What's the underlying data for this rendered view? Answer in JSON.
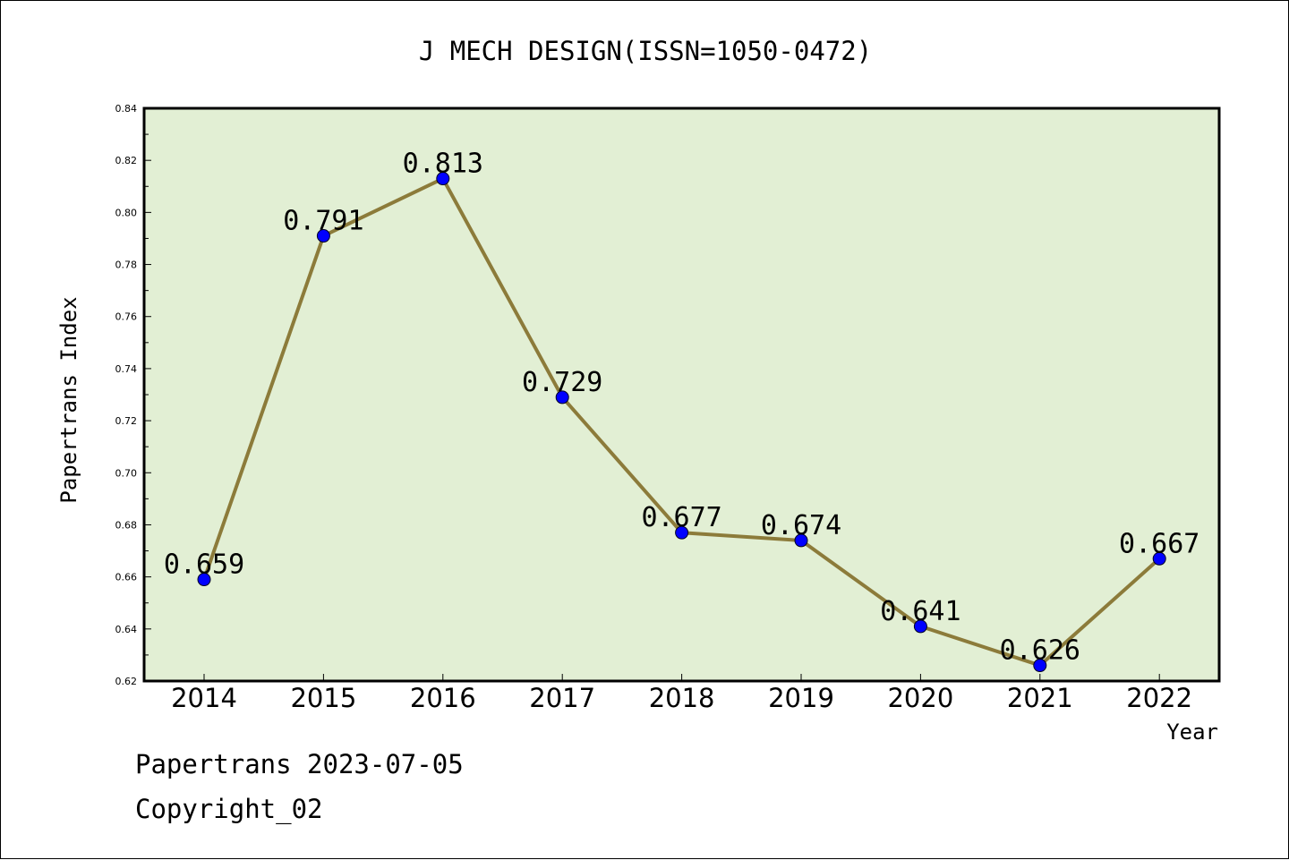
{
  "chart_data": {
    "type": "line",
    "title": "J MECH DESIGN(ISSN=1050-0472)",
    "xlabel": "Year",
    "ylabel": "Papertrans Index",
    "categories": [
      "2014",
      "2015",
      "2016",
      "2017",
      "2018",
      "2019",
      "2020",
      "2021",
      "2022"
    ],
    "series": [
      {
        "values": [
          0.659,
          0.791,
          0.813,
          0.729,
          0.677,
          0.674,
          0.641,
          0.626,
          0.667
        ]
      }
    ],
    "data_labels": [
      "0.659",
      "0.791",
      "0.813",
      "0.729",
      "0.677",
      "0.674",
      "0.641",
      "0.626",
      "0.667"
    ],
    "ylim": [
      0.62,
      0.84
    ],
    "yticks": [
      "0.62",
      "0.64",
      "0.66",
      "0.68",
      "0.70",
      "0.72",
      "0.74",
      "0.76",
      "0.78",
      "0.80",
      "0.82",
      "0.84"
    ],
    "grid": false,
    "colors": {
      "line": "#8c7b3a",
      "marker": "#0000ff",
      "plot_bg": "#e2efd4"
    }
  },
  "footer": {
    "line1": "Papertrans 2023-07-05",
    "line2": "Copyright_02"
  }
}
